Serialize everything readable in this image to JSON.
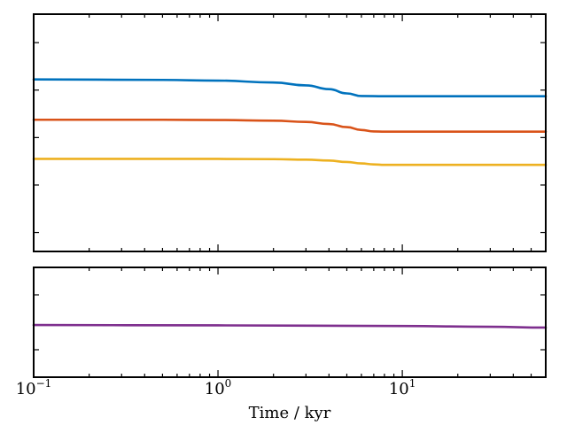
{
  "chart_data": [
    {
      "panel": "top",
      "type": "line",
      "xscale": "log",
      "xlim": [
        0.1,
        60
      ],
      "ylim": [
        0,
        1
      ],
      "ytick_values": [
        0.08,
        0.28,
        0.48,
        0.68,
        0.88
      ],
      "series": [
        {
          "color": "#0072BD",
          "x": [
            0.1,
            0.5,
            1,
            2,
            3,
            4,
            5,
            6,
            8,
            10,
            20,
            40,
            60
          ],
          "y": [
            0.725,
            0.723,
            0.72,
            0.712,
            0.7,
            0.684,
            0.666,
            0.655,
            0.654,
            0.654,
            0.654,
            0.654,
            0.654
          ]
        },
        {
          "color": "#D95319",
          "x": [
            0.1,
            0.5,
            1,
            2,
            3,
            4,
            5,
            6,
            7,
            8,
            10,
            20,
            40,
            60
          ],
          "y": [
            0.555,
            0.555,
            0.554,
            0.551,
            0.546,
            0.537,
            0.524,
            0.512,
            0.506,
            0.505,
            0.505,
            0.505,
            0.505,
            0.505
          ]
        },
        {
          "color": "#EDB120",
          "x": [
            0.1,
            0.5,
            1,
            2,
            3,
            4,
            5,
            6,
            7,
            8,
            10,
            20,
            40,
            60
          ],
          "y": [
            0.39,
            0.39,
            0.39,
            0.389,
            0.387,
            0.383,
            0.377,
            0.371,
            0.367,
            0.365,
            0.365,
            0.365,
            0.365,
            0.365
          ]
        }
      ]
    },
    {
      "panel": "bottom",
      "type": "line",
      "xscale": "log",
      "xlim": [
        0.1,
        60
      ],
      "ylim": [
        0,
        1
      ],
      "ytick_values": [
        0.25,
        0.75
      ],
      "series": [
        {
          "color": "#7E2F8E",
          "x": [
            0.1,
            1,
            10,
            30,
            60
          ],
          "y": [
            0.475,
            0.472,
            0.466,
            0.459,
            0.452
          ]
        }
      ],
      "xlabel": "Time / kyr",
      "xticklabels": [
        {
          "value": 0.1,
          "base": "10",
          "exp": "−1"
        },
        {
          "value": 1,
          "base": "10",
          "exp": "0"
        },
        {
          "value": 10,
          "base": "10",
          "exp": "1"
        }
      ]
    }
  ]
}
